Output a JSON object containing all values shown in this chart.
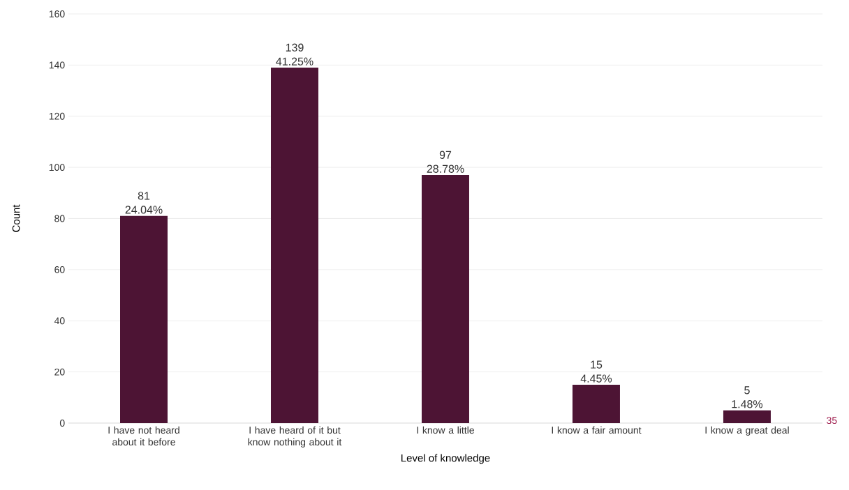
{
  "chart_data": {
    "type": "bar",
    "xlabel": "Level of knowledge",
    "ylabel": "Count",
    "categories": [
      "I have not heard about it before",
      "I have heard of it but know nothing about it",
      "I know a little",
      "I know a fair amount",
      "I know a great deal"
    ],
    "values": [
      81,
      139,
      97,
      15,
      5
    ],
    "color": "#4d1434",
    "value_labels": [
      "81 24.04%",
      "139 41.25%",
      "97 28.78%",
      "15 4.45%",
      "5 1.48%"
    ],
    "ylim": [
      0,
      160
    ],
    "yticks": [
      0,
      20,
      40,
      60,
      80,
      100,
      120,
      140,
      160
    ],
    "grid": "y",
    "annotations": [
      "35"
    ]
  }
}
